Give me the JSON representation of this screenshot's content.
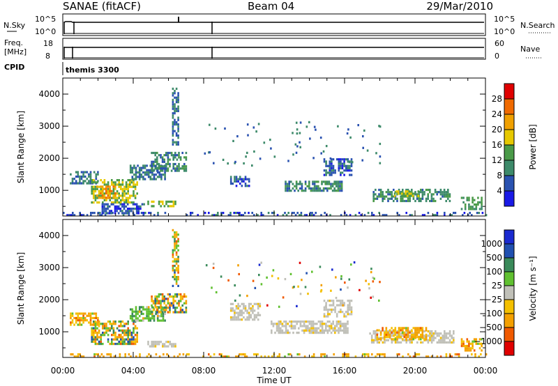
{
  "header": {
    "radar": "SANAE (fitACF)",
    "beam": "Beam 04",
    "date": "29/Mar/2010"
  },
  "panel_labels": {
    "nsky": "N.Sky",
    "nsky_ticks": [
      "10^5",
      "10^0"
    ],
    "nsearch": "N.Search",
    "nsearch_ticks": [
      "10^5",
      "10^0"
    ],
    "freq": "Freq.",
    "freq_unit": "[MHz]",
    "freq_ticks": [
      "18",
      "8"
    ],
    "nave": "Nave",
    "nave_ticks": [
      "60",
      "0"
    ],
    "cpid": "CPID",
    "cpid_value": "themis 3300"
  },
  "colors": {
    "power_scale": [
      "#1a1ae6",
      "#2a52b0",
      "#3d8a6a",
      "#4a9a48",
      "#e6c800",
      "#f0a000",
      "#f06a00",
      "#e00000"
    ],
    "velocity_scale": [
      "#e00000",
      "#f05a00",
      "#f4a000",
      "#f4c000",
      "#c0c0b8",
      "#60c030",
      "#3a8a5a",
      "#2050b0",
      "#1a2ad0"
    ],
    "ground_scatter": "#c0c0b8"
  },
  "chart_data": [
    {
      "type": "heatmap",
      "name": "Power",
      "xlabel": "",
      "ylabel": "Slant Range [km]",
      "x_ticks": [
        "00:00",
        "04:00",
        "08:00",
        "12:00",
        "16:00",
        "20:00",
        "00:00"
      ],
      "y_ticks": [
        "1000",
        "2000",
        "3000",
        "4000"
      ],
      "xlim_hours": [
        0,
        24
      ],
      "ylim_km": [
        200,
        4500
      ],
      "colorbar": {
        "label": "Power [dB]",
        "ticks": [
          "4",
          "8",
          "12",
          "16",
          "20",
          "24",
          "28"
        ],
        "range": [
          0,
          32
        ]
      },
      "echo_regions": [
        {
          "start": 0.4,
          "end": 2.0,
          "range_lo": 1250,
          "range_hi": 1600,
          "level": 8
        },
        {
          "start": 1.6,
          "end": 4.2,
          "range_lo": 650,
          "range_hi": 1350,
          "level": 16
        },
        {
          "start": 1.9,
          "end": 3.0,
          "range_lo": 800,
          "range_hi": 1150,
          "level": 22
        },
        {
          "start": 2.2,
          "end": 4.6,
          "range_lo": 300,
          "range_hi": 600,
          "level": 6
        },
        {
          "start": 3.8,
          "end": 5.8,
          "range_lo": 1350,
          "range_hi": 1800,
          "level": 8
        },
        {
          "start": 5.0,
          "end": 7.0,
          "range_lo": 1600,
          "range_hi": 2200,
          "level": 10
        },
        {
          "start": 4.8,
          "end": 6.4,
          "range_lo": 520,
          "range_hi": 680,
          "level": 16
        },
        {
          "start": 6.2,
          "end": 6.6,
          "range_lo": 2400,
          "range_hi": 4200,
          "level": 8
        },
        {
          "start": 9.5,
          "end": 10.6,
          "range_lo": 1150,
          "range_hi": 1450,
          "level": 6
        },
        {
          "start": 12.6,
          "end": 15.8,
          "range_lo": 1000,
          "range_hi": 1300,
          "level": 10
        },
        {
          "start": 14.8,
          "end": 16.4,
          "range_lo": 1500,
          "range_hi": 2000,
          "level": 6
        },
        {
          "start": 17.6,
          "end": 22.0,
          "range_lo": 700,
          "range_hi": 1050,
          "level": 10
        },
        {
          "start": 18.8,
          "end": 20.2,
          "range_lo": 800,
          "range_hi": 1000,
          "level": 16
        },
        {
          "start": 22.6,
          "end": 23.8,
          "range_lo": 450,
          "range_hi": 800,
          "level": 12
        },
        {
          "start": 0.0,
          "end": 24.0,
          "range_lo": 230,
          "range_hi": 330,
          "level": 6
        }
      ]
    },
    {
      "type": "heatmap",
      "name": "Velocity",
      "xlabel": "Time UT",
      "ylabel": "Slant Range [km]",
      "x_ticks": [
        "00:00",
        "04:00",
        "08:00",
        "12:00",
        "16:00",
        "20:00",
        "00:00"
      ],
      "y_ticks": [
        "1000",
        "2000",
        "3000",
        "4000"
      ],
      "xlim_hours": [
        0,
        24
      ],
      "ylim_km": [
        200,
        4500
      ],
      "colorbar": {
        "label": "Velocity [m s⁻¹]",
        "ticks": [
          "1000",
          "500",
          "100",
          "25",
          "−25",
          "−100",
          "−500",
          "−1000"
        ]
      },
      "echo_regions": [
        {
          "start": 0.4,
          "end": 2.0,
          "range_lo": 1250,
          "range_hi": 1600,
          "class": "neg"
        },
        {
          "start": 1.6,
          "end": 4.2,
          "range_lo": 650,
          "range_hi": 1350,
          "class": "mixed"
        },
        {
          "start": 3.8,
          "end": 5.8,
          "range_lo": 1350,
          "range_hi": 1800,
          "class": "pos"
        },
        {
          "start": 5.0,
          "end": 7.0,
          "range_lo": 1600,
          "range_hi": 2200,
          "class": "mixed"
        },
        {
          "start": 4.8,
          "end": 6.4,
          "range_lo": 560,
          "range_hi": 720,
          "class": "ground"
        },
        {
          "start": 6.2,
          "end": 6.6,
          "range_lo": 2400,
          "range_hi": 4200,
          "class": "mixed"
        },
        {
          "start": 9.5,
          "end": 11.2,
          "range_lo": 1400,
          "range_hi": 1900,
          "class": "ground"
        },
        {
          "start": 11.8,
          "end": 16.2,
          "range_lo": 1000,
          "range_hi": 1350,
          "class": "ground"
        },
        {
          "start": 14.8,
          "end": 16.4,
          "range_lo": 1500,
          "range_hi": 2000,
          "class": "ground"
        },
        {
          "start": 17.4,
          "end": 22.2,
          "range_lo": 650,
          "range_hi": 1050,
          "class": "ground"
        },
        {
          "start": 17.8,
          "end": 20.6,
          "range_lo": 800,
          "range_hi": 1150,
          "class": "neg"
        },
        {
          "start": 22.6,
          "end": 23.8,
          "range_lo": 450,
          "range_hi": 800,
          "class": "neg"
        },
        {
          "start": 0.0,
          "end": 24.0,
          "range_lo": 230,
          "range_hi": 330,
          "class": "neg"
        }
      ]
    }
  ]
}
